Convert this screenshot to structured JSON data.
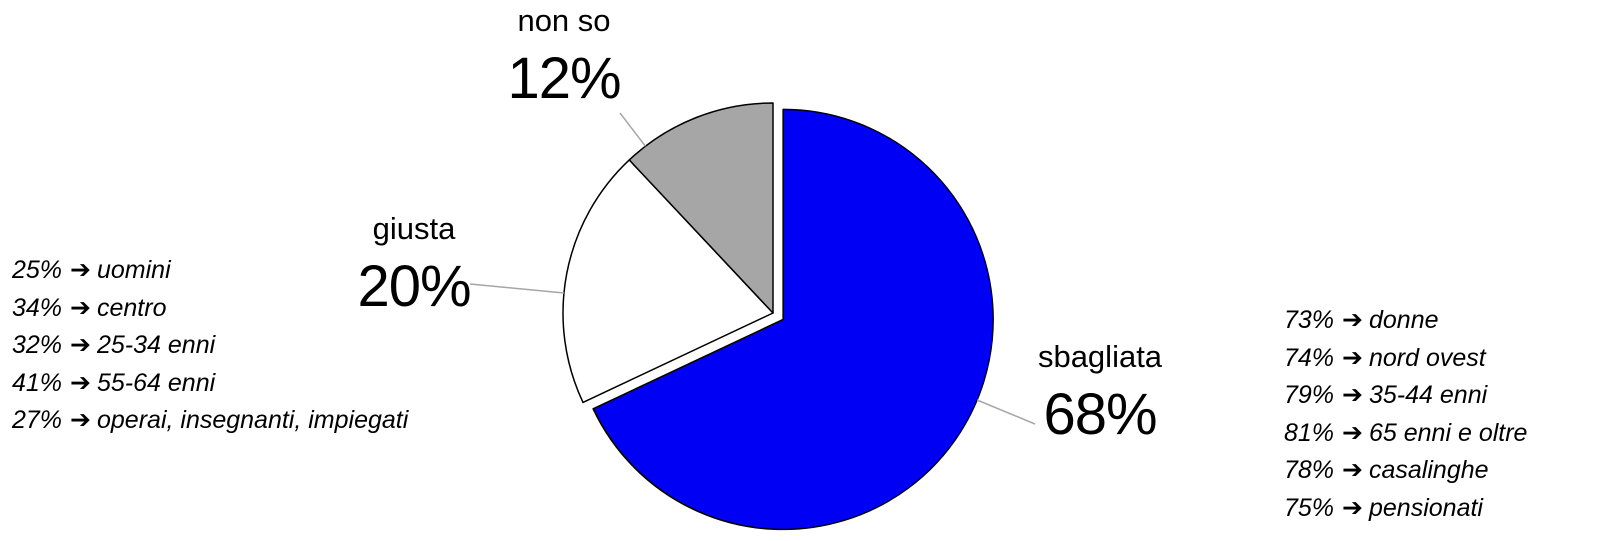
{
  "colors": {
    "sbagliata": "#0000F5",
    "giusta": "#FFFFFF",
    "non_so": "#A6A6A6",
    "outline": "#000000",
    "leader": "#A6A6A6"
  },
  "chart_data": {
    "type": "pie",
    "title": "",
    "slices": [
      {
        "label": "sbagliata",
        "value": 68,
        "value_label": "68%",
        "exploded": true
      },
      {
        "label": "giusta",
        "value": 20,
        "value_label": "20%",
        "exploded": false
      },
      {
        "label": "non so",
        "value": 12,
        "value_label": "12%",
        "exploded": false
      }
    ],
    "start_angle": "12 o'clock",
    "direction": "clockwise",
    "annotations": {
      "left": [
        {
          "pct": "25%",
          "arrow": "➔",
          "text": "uomini"
        },
        {
          "pct": "34%",
          "arrow": "➔",
          "text": "centro"
        },
        {
          "pct": "32%",
          "arrow": "➔",
          "text": "25-34 enni"
        },
        {
          "pct": "41%",
          "arrow": "➔",
          "text": "55-64 enni"
        },
        {
          "pct": "27%",
          "arrow": "➔",
          "text": "operai, insegnanti, impiegati"
        }
      ],
      "right": [
        {
          "pct": "73%",
          "arrow": "➔",
          "text": "donne"
        },
        {
          "pct": "74%",
          "arrow": "➔",
          "text": "nord ovest"
        },
        {
          "pct": "79%",
          "arrow": "➔",
          "text": "35-44 enni"
        },
        {
          "pct": "81%",
          "arrow": "➔",
          "text": "65 enni e oltre"
        },
        {
          "pct": "78%",
          "arrow": "➔",
          "text": "casalinghe"
        },
        {
          "pct": "75%",
          "arrow": "➔",
          "text": "pensionati"
        }
      ]
    }
  }
}
